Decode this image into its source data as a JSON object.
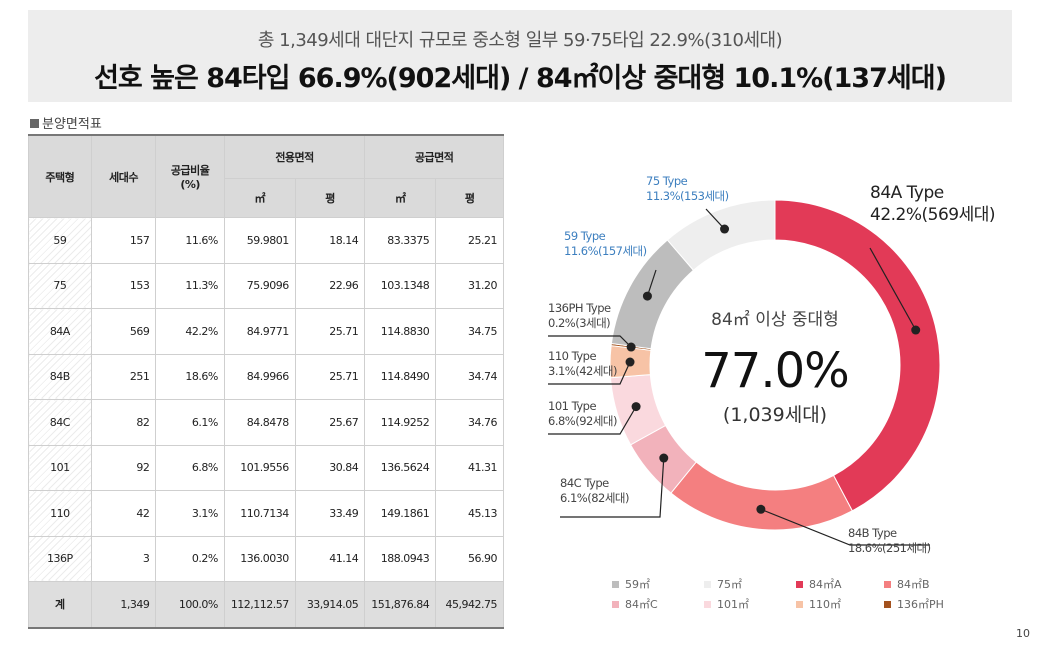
{
  "header": {
    "subtitle": "총 1,349세대 대단지 규모로 중소형 일부 59·75타입 22.9%(310세대)",
    "title": "선호 높은 84타입 66.9%(902세대) / 84㎡이상 중대형 10.1%(137세대)"
  },
  "table": {
    "title": "분양면적표",
    "headers": {
      "type": "주택형",
      "units": "세대수",
      "ratio": "공급비율\n(%)",
      "exclusive": "전용면적",
      "supply": "공급면적",
      "m2": "㎡",
      "pyeong": "평"
    },
    "rows": [
      {
        "type": "59",
        "units": "157",
        "ratio": "11.6%",
        "ex_m2": "59.9801",
        "ex_py": "18.14",
        "sup_m2": "83.3375",
        "sup_py": "25.21"
      },
      {
        "type": "75",
        "units": "153",
        "ratio": "11.3%",
        "ex_m2": "75.9096",
        "ex_py": "22.96",
        "sup_m2": "103.1348",
        "sup_py": "31.20"
      },
      {
        "type": "84A",
        "units": "569",
        "ratio": "42.2%",
        "ex_m2": "84.9771",
        "ex_py": "25.71",
        "sup_m2": "114.8830",
        "sup_py": "34.75"
      },
      {
        "type": "84B",
        "units": "251",
        "ratio": "18.6%",
        "ex_m2": "84.9966",
        "ex_py": "25.71",
        "sup_m2": "114.8490",
        "sup_py": "34.74"
      },
      {
        "type": "84C",
        "units": "82",
        "ratio": "6.1%",
        "ex_m2": "84.8478",
        "ex_py": "25.67",
        "sup_m2": "114.9252",
        "sup_py": "34.76"
      },
      {
        "type": "101",
        "units": "92",
        "ratio": "6.8%",
        "ex_m2": "101.9556",
        "ex_py": "30.84",
        "sup_m2": "136.5624",
        "sup_py": "41.31"
      },
      {
        "type": "110",
        "units": "42",
        "ratio": "3.1%",
        "ex_m2": "110.7134",
        "ex_py": "33.49",
        "sup_m2": "149.1861",
        "sup_py": "45.13"
      },
      {
        "type": "136P",
        "units": "3",
        "ratio": "0.2%",
        "ex_m2": "136.0030",
        "ex_py": "41.14",
        "sup_m2": "188.0943",
        "sup_py": "56.90"
      }
    ],
    "total": {
      "type": "계",
      "units": "1,349",
      "ratio": "100.0%",
      "ex_m2": "112,112.57",
      "ex_py": "33,914.05",
      "sup_m2": "151,876.84",
      "sup_py": "45,942.75"
    }
  },
  "chart_data": {
    "type": "pie",
    "style": "donut",
    "center_label": "84㎡ 이상 중대형",
    "center_value": "77.0%",
    "center_sub": "(1,039세대)",
    "slices": [
      {
        "name": "84A Type",
        "label": "42.2%(569세대)",
        "value": 42.2,
        "units": 569,
        "color": "#e23a57",
        "legend": "84㎡A"
      },
      {
        "name": "84B Type",
        "label": "18.6%(251세대)",
        "value": 18.6,
        "units": 251,
        "color": "#f47f80",
        "legend": "84㎡B"
      },
      {
        "name": "84C Type",
        "label": "6.1%(82세대)",
        "value": 6.1,
        "units": 82,
        "color": "#f2b2bb",
        "legend": "84㎡C"
      },
      {
        "name": "101 Type",
        "label": "6.8%(92세대)",
        "value": 6.8,
        "units": 92,
        "color": "#fad9de",
        "legend": "101㎡"
      },
      {
        "name": "110 Type",
        "label": "3.1%(42세대)",
        "value": 3.1,
        "units": 42,
        "color": "#f7c3a6",
        "legend": "110㎡"
      },
      {
        "name": "136PH Type",
        "label": "0.2%(3세대)",
        "value": 0.2,
        "units": 3,
        "color": "#a3521e",
        "legend": "136㎡PH"
      },
      {
        "name": "59 Type",
        "label": "11.6%(157세대)",
        "value": 11.6,
        "units": 157,
        "color": "#bdbdbd",
        "legend": "59㎡"
      },
      {
        "name": "75 Type",
        "label": "11.3%(153세대)",
        "value": 11.3,
        "units": 153,
        "color": "#eeeeee",
        "legend": "75㎡"
      }
    ],
    "legend_order": [
      "59㎡",
      "75㎡",
      "84㎡A",
      "84㎡B",
      "84㎡C",
      "101㎡",
      "110㎡",
      "136㎡PH"
    ],
    "legend_colors": [
      "#bdbdbd",
      "#eeeeee",
      "#e23a57",
      "#f47f80",
      "#f2b2bb",
      "#fad9de",
      "#f7c3a6",
      "#a3521e"
    ]
  },
  "page_number": "10"
}
